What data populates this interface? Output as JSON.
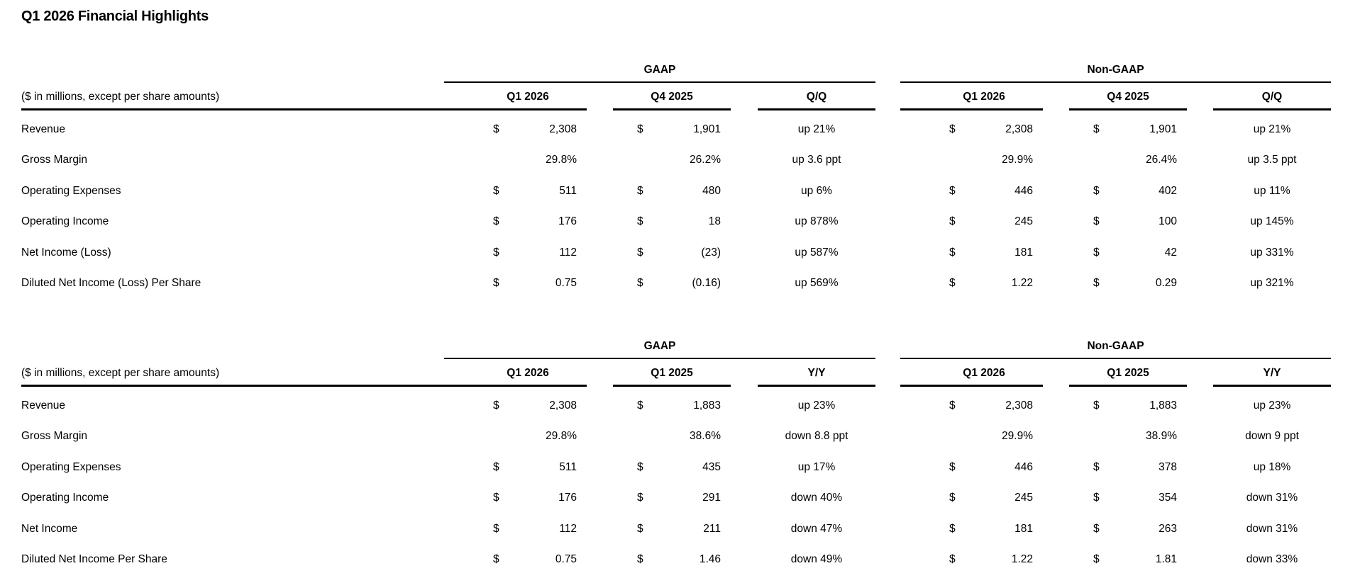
{
  "page": {
    "title": "Q1 2026 Financial Highlights"
  },
  "tables": [
    {
      "name": "quarter-over-quarter",
      "unit_note": "($ in millions, except per share amounts)",
      "groups": [
        {
          "label": "GAAP",
          "columns": [
            "Q1 2026",
            "Q4 2025",
            "Q/Q"
          ]
        },
        {
          "label": "Non-GAAP",
          "columns": [
            "Q1 2026",
            "Q4 2025",
            "Q/Q"
          ]
        }
      ],
      "rows": [
        {
          "label": "Revenue",
          "cells": [
            {
              "type": "money",
              "currency": "$",
              "value": "2,308"
            },
            {
              "type": "money",
              "currency": "$",
              "value": "1,901"
            },
            {
              "type": "change",
              "currency": "",
              "value": "up 21%"
            },
            {
              "type": "money",
              "currency": "$",
              "value": "2,308"
            },
            {
              "type": "money",
              "currency": "$",
              "value": "1,901"
            },
            {
              "type": "change",
              "currency": "",
              "value": "up 21%"
            }
          ]
        },
        {
          "label": "Gross Margin",
          "cells": [
            {
              "type": "percent",
              "currency": "",
              "value": "29.8%"
            },
            {
              "type": "percent",
              "currency": "",
              "value": "26.2%"
            },
            {
              "type": "change",
              "currency": "",
              "value": "up 3.6 ppt"
            },
            {
              "type": "percent",
              "currency": "",
              "value": "29.9%"
            },
            {
              "type": "percent",
              "currency": "",
              "value": "26.4%"
            },
            {
              "type": "change",
              "currency": "",
              "value": "up 3.5 ppt"
            }
          ]
        },
        {
          "label": "Operating Expenses",
          "cells": [
            {
              "type": "money",
              "currency": "$",
              "value": "511"
            },
            {
              "type": "money",
              "currency": "$",
              "value": "480"
            },
            {
              "type": "change",
              "currency": "",
              "value": "up 6%"
            },
            {
              "type": "money",
              "currency": "$",
              "value": "446"
            },
            {
              "type": "money",
              "currency": "$",
              "value": "402"
            },
            {
              "type": "change",
              "currency": "",
              "value": "up 11%"
            }
          ]
        },
        {
          "label": "Operating Income",
          "cells": [
            {
              "type": "money",
              "currency": "$",
              "value": "176"
            },
            {
              "type": "money",
              "currency": "$",
              "value": "18"
            },
            {
              "type": "change",
              "currency": "",
              "value": "up 878%"
            },
            {
              "type": "money",
              "currency": "$",
              "value": "245"
            },
            {
              "type": "money",
              "currency": "$",
              "value": "100"
            },
            {
              "type": "change",
              "currency": "",
              "value": "up 145%"
            }
          ]
        },
        {
          "label": "Net Income (Loss)",
          "cells": [
            {
              "type": "money",
              "currency": "$",
              "value": "112"
            },
            {
              "type": "money",
              "currency": "$",
              "value": "(23)"
            },
            {
              "type": "change",
              "currency": "",
              "value": "up 587%"
            },
            {
              "type": "money",
              "currency": "$",
              "value": "181"
            },
            {
              "type": "money",
              "currency": "$",
              "value": "42"
            },
            {
              "type": "change",
              "currency": "",
              "value": "up 331%"
            }
          ]
        },
        {
          "label": "Diluted Net Income (Loss) Per Share",
          "cells": [
            {
              "type": "money",
              "currency": "$",
              "value": "0.75"
            },
            {
              "type": "money",
              "currency": "$",
              "value": "(0.16)"
            },
            {
              "type": "change",
              "currency": "",
              "value": "up 569%"
            },
            {
              "type": "money",
              "currency": "$",
              "value": "1.22"
            },
            {
              "type": "money",
              "currency": "$",
              "value": "0.29"
            },
            {
              "type": "change",
              "currency": "",
              "value": "up 321%"
            }
          ]
        }
      ]
    },
    {
      "name": "year-over-year",
      "unit_note": "($ in millions, except per share amounts)",
      "groups": [
        {
          "label": "GAAP",
          "columns": [
            "Q1 2026",
            "Q1 2025",
            "Y/Y"
          ]
        },
        {
          "label": "Non-GAAP",
          "columns": [
            "Q1 2026",
            "Q1 2025",
            "Y/Y"
          ]
        }
      ],
      "rows": [
        {
          "label": "Revenue",
          "cells": [
            {
              "type": "money",
              "currency": "$",
              "value": "2,308"
            },
            {
              "type": "money",
              "currency": "$",
              "value": "1,883"
            },
            {
              "type": "change",
              "currency": "",
              "value": "up 23%"
            },
            {
              "type": "money",
              "currency": "$",
              "value": "2,308"
            },
            {
              "type": "money",
              "currency": "$",
              "value": "1,883"
            },
            {
              "type": "change",
              "currency": "",
              "value": "up 23%"
            }
          ]
        },
        {
          "label": "Gross Margin",
          "cells": [
            {
              "type": "percent",
              "currency": "",
              "value": "29.8%"
            },
            {
              "type": "percent",
              "currency": "",
              "value": "38.6%"
            },
            {
              "type": "change",
              "currency": "",
              "value": "down 8.8 ppt"
            },
            {
              "type": "percent",
              "currency": "",
              "value": "29.9%"
            },
            {
              "type": "percent",
              "currency": "",
              "value": "38.9%"
            },
            {
              "type": "change",
              "currency": "",
              "value": "down 9 ppt"
            }
          ]
        },
        {
          "label": "Operating Expenses",
          "cells": [
            {
              "type": "money",
              "currency": "$",
              "value": "511"
            },
            {
              "type": "money",
              "currency": "$",
              "value": "435"
            },
            {
              "type": "change",
              "currency": "",
              "value": "up 17%"
            },
            {
              "type": "money",
              "currency": "$",
              "value": "446"
            },
            {
              "type": "money",
              "currency": "$",
              "value": "378"
            },
            {
              "type": "change",
              "currency": "",
              "value": "up 18%"
            }
          ]
        },
        {
          "label": "Operating Income",
          "cells": [
            {
              "type": "money",
              "currency": "$",
              "value": "176"
            },
            {
              "type": "money",
              "currency": "$",
              "value": "291"
            },
            {
              "type": "change",
              "currency": "",
              "value": "down 40%"
            },
            {
              "type": "money",
              "currency": "$",
              "value": "245"
            },
            {
              "type": "money",
              "currency": "$",
              "value": "354"
            },
            {
              "type": "change",
              "currency": "",
              "value": "down 31%"
            }
          ]
        },
        {
          "label": "Net Income",
          "cells": [
            {
              "type": "money",
              "currency": "$",
              "value": "112"
            },
            {
              "type": "money",
              "currency": "$",
              "value": "211"
            },
            {
              "type": "change",
              "currency": "",
              "value": "down 47%"
            },
            {
              "type": "money",
              "currency": "$",
              "value": "181"
            },
            {
              "type": "money",
              "currency": "$",
              "value": "263"
            },
            {
              "type": "change",
              "currency": "",
              "value": "down 31%"
            }
          ]
        },
        {
          "label": "Diluted Net Income Per Share",
          "cells": [
            {
              "type": "money",
              "currency": "$",
              "value": "0.75"
            },
            {
              "type": "money",
              "currency": "$",
              "value": "1.46"
            },
            {
              "type": "change",
              "currency": "",
              "value": "down 49%"
            },
            {
              "type": "money",
              "currency": "$",
              "value": "1.22"
            },
            {
              "type": "money",
              "currency": "$",
              "value": "1.81"
            },
            {
              "type": "change",
              "currency": "",
              "value": "down 33%"
            }
          ]
        }
      ]
    }
  ]
}
